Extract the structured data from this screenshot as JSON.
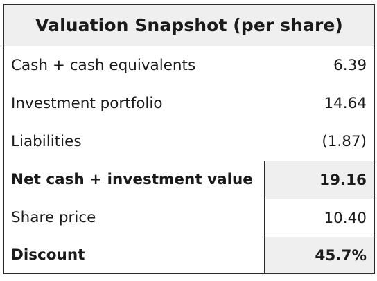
{
  "table": {
    "title": "Valuation Snapshot (per share)",
    "rows": [
      {
        "label": "Cash + cash equivalents",
        "value": "6.39"
      },
      {
        "label": "Investment portfolio",
        "value": "14.64"
      },
      {
        "label": "Liabilities",
        "value": "(1.87)"
      },
      {
        "label": "Net cash + investment value",
        "value": "19.16"
      },
      {
        "label": "Share price",
        "value": "10.40"
      },
      {
        "label": "Discount",
        "value": "45.7%"
      }
    ]
  },
  "colors": {
    "header_bg": "#efefef",
    "border": "#2b2b2b",
    "text": "#1a1a1a"
  }
}
